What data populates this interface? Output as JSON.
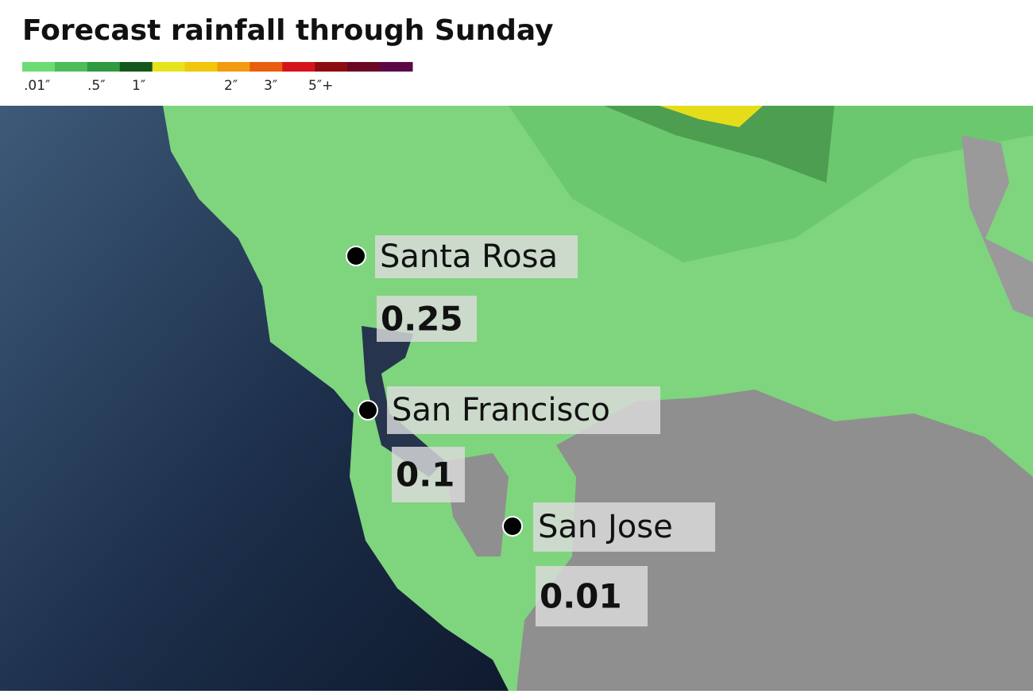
{
  "title": "Forecast rainfall through Sunday",
  "legend": {
    "colors": [
      "#6ddc73",
      "#4cbd58",
      "#2f9a3f",
      "#14561c",
      "#e6e31a",
      "#f2c60a",
      "#f29a10",
      "#e85e0c",
      "#d4141a",
      "#8c0c10",
      "#6a0724",
      "#5a0848"
    ],
    "labels": [
      ".01″",
      ".5″",
      "1″",
      "2″",
      "3″",
      "5″+"
    ]
  },
  "cities": [
    {
      "name": "Santa Rosa",
      "rainfall": "0.25"
    },
    {
      "name": "San Francisco",
      "rainfall": "0.1"
    },
    {
      "name": "San Jose",
      "rainfall": "0.01"
    }
  ]
}
